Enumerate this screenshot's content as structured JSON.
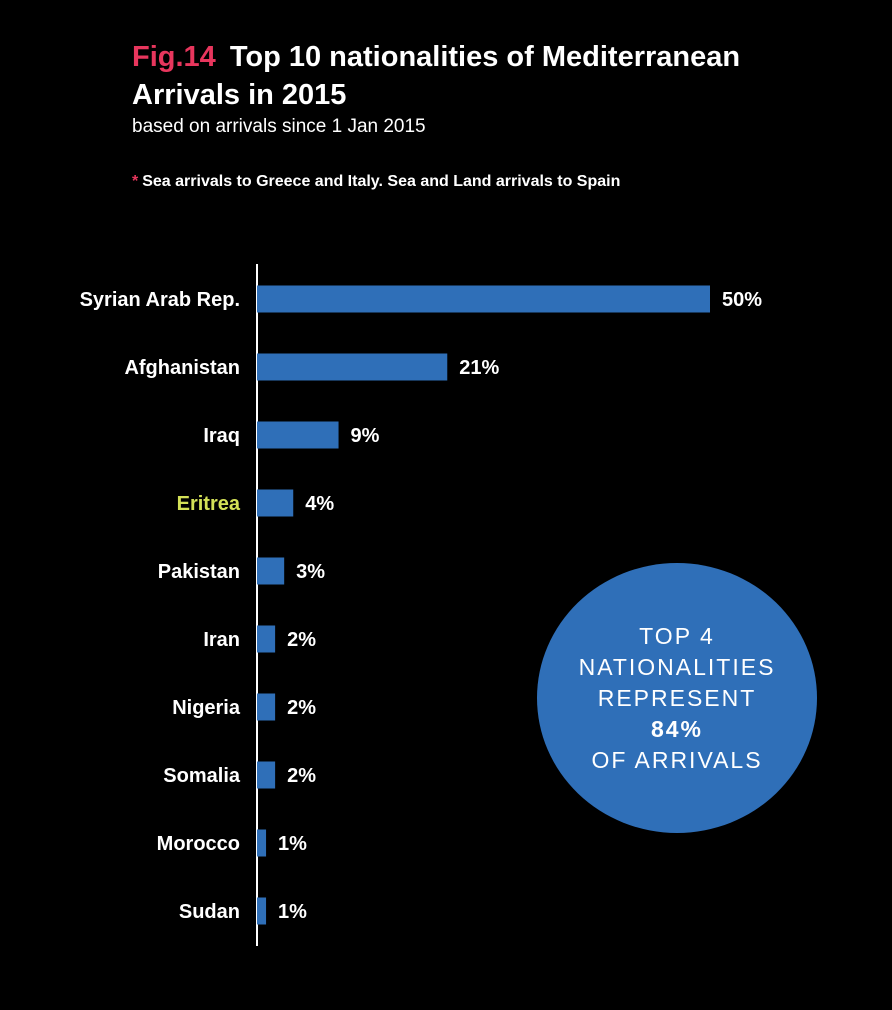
{
  "header": {
    "fig_label": "Fig.14",
    "title_line1": "Top 10 nationalities of Mediterranean",
    "title_line2": "Arrivals in 2015",
    "subtitle": "based on arrivals since 1 Jan 2015"
  },
  "footnote": {
    "star": "*",
    "text": "Sea arrivals to Greece and Italy. Sea and Land arrivals to Spain"
  },
  "colors": {
    "bar": "#2f6fb8",
    "accent": "#e8365d",
    "highlight": "#d4e157",
    "text": "#ffffff",
    "background": "#000000"
  },
  "chart_data": {
    "type": "bar",
    "orientation": "horizontal",
    "categories": [
      "Syrian Arab Rep.",
      "Afghanistan",
      "Iraq",
      "Eritrea",
      "Pakistan",
      "Iran",
      "Nigeria",
      "Somalia",
      "Morocco",
      "Sudan"
    ],
    "values": [
      50,
      21,
      9,
      4,
      3,
      2,
      2,
      2,
      1,
      1
    ],
    "labels": [
      "50%",
      "21%",
      "9%",
      "4%",
      "3%",
      "2%",
      "2%",
      "2%",
      "1%",
      "1%"
    ],
    "highlighted_category": "Eritrea",
    "title": "Top 10 nationalities of Mediterranean Arrivals in 2015",
    "subtitle": "based on arrivals since 1 Jan 2015",
    "unit": "%",
    "grid": false,
    "legend": "none"
  },
  "callout": {
    "line1": "TOP 4",
    "line2": "NATIONALITIES",
    "line3": "REPRESENT",
    "value": "84%",
    "line4": "OF ARRIVALS"
  }
}
